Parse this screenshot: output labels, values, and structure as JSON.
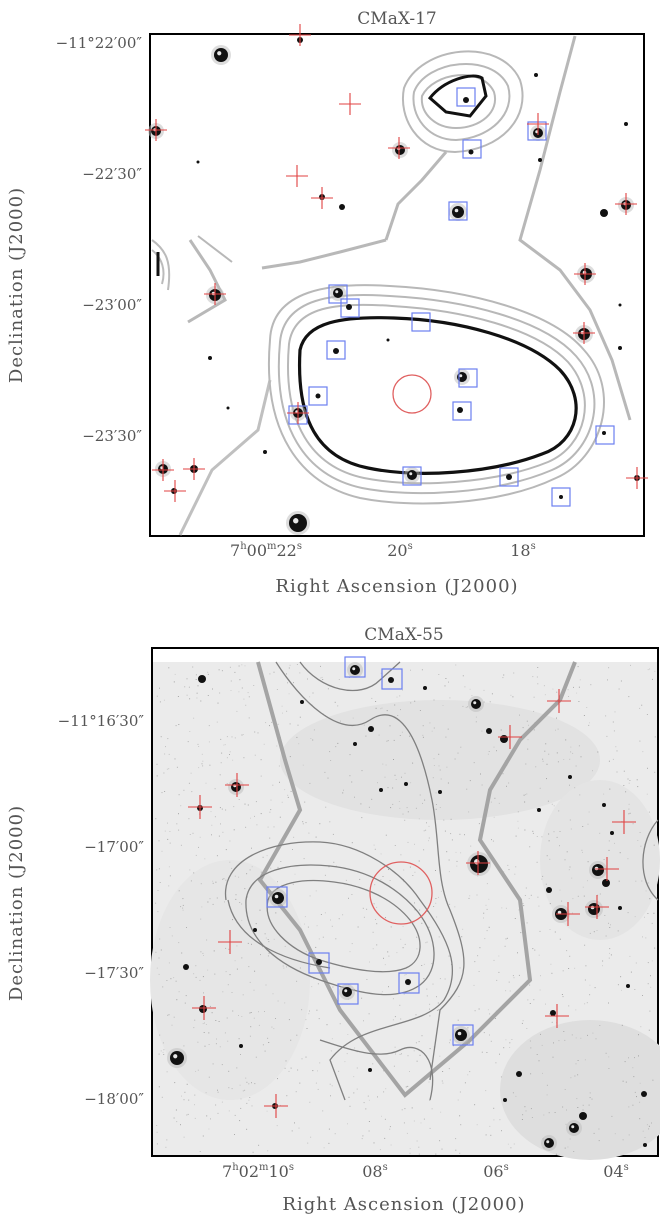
{
  "panels": [
    {
      "id": "p1",
      "title": "CMaX-17",
      "xlabel": "Right Ascension (J2000)",
      "ylabel": "Declination (J2000)",
      "xticks": [
        {
          "text": "7h00m22s",
          "main": "7",
          "s1": "h",
          "mid": "00",
          "s2": "m",
          "end": "22",
          "s3": "s"
        },
        {
          "text": "20s",
          "main": "20",
          "s3": "s"
        },
        {
          "text": "18s",
          "main": "18",
          "s3": "s"
        }
      ],
      "yticks": [
        "−11°22′00″",
        "−22′30″",
        "−23′00″",
        "−23′30″"
      ]
    },
    {
      "id": "p2",
      "title": "CMaX-55",
      "xlabel": "Right Ascension (J2000)",
      "ylabel": "Declination (J2000)",
      "xticks": [
        {
          "text": "7h02m10s",
          "main": "7",
          "s1": "h",
          "mid": "02",
          "s2": "m",
          "end": "10",
          "s3": "s"
        },
        {
          "text": "08s",
          "main": "08",
          "s3": "s"
        },
        {
          "text": "06s",
          "main": "06",
          "s3": "s"
        },
        {
          "text": "04s",
          "main": "04",
          "s3": "s"
        }
      ],
      "yticks": [
        "−11°16′30″",
        "−17′00″",
        "−17′30″",
        "−18′00″"
      ]
    }
  ],
  "colors": {
    "frame": "#000000",
    "contour_thin": "#b8b8b8",
    "contour_thick": "#111111",
    "contour_grey_thick": "#a0a0a0",
    "marker_box": "#6c7ff0",
    "marker_cross": "#e04040",
    "marker_circle": "#e06060",
    "star": "#111111"
  }
}
